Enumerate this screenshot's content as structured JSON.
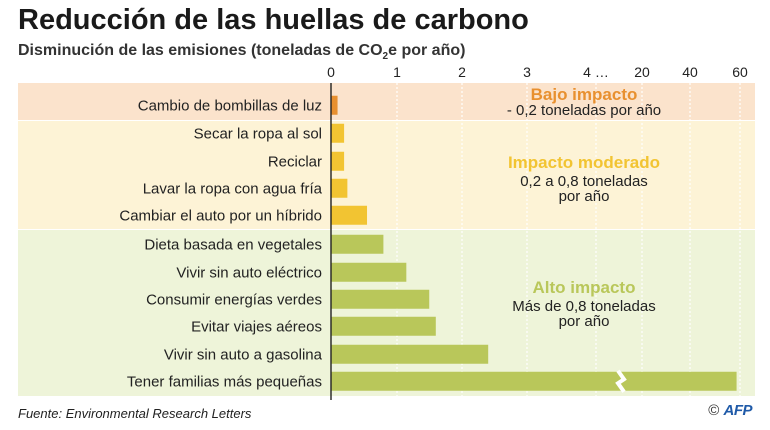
{
  "title": "Reducción de las huellas de carbono",
  "subtitle": {
    "before": "Disminución de las emisiones (toneladas de CO",
    "sub": "2",
    "after": "e por año)"
  },
  "footer": {
    "source": "Fuente: Environmental Research Letters",
    "copyright": "©",
    "logo": "AFP"
  },
  "colors": {
    "bajo_bg": "#fbe3cc",
    "bajo_bar": "#e8902f",
    "moderado_bg": "#fdf3d6",
    "moderado_bar": "#f2c432",
    "alto_bg": "#eef4d9",
    "alto_bar": "#b9c75a"
  },
  "chart_data": {
    "type": "bar",
    "orientation": "horizontal",
    "axis_note": "broken axis: 0–4 linear, then 20–60",
    "x_ticks": [
      "0",
      "1",
      "2",
      "3",
      "4 …",
      "20",
      "40",
      "60"
    ],
    "categories": [
      "Cambio de bombillas de luz",
      "Secar la ropa al sol",
      "Reciclar",
      "Lavar la ropa con agua fría",
      "Cambiar el auto por un híbrido",
      "Dieta basada en vegetales",
      "Vivir sin auto eléctrico",
      "Consumir energías verdes",
      "Evitar viajes aéreos",
      "Vivir sin auto a gasolina",
      "Tener familias más pequeñas"
    ],
    "values": [
      0.1,
      0.2,
      0.2,
      0.25,
      0.55,
      0.8,
      1.15,
      1.5,
      1.6,
      2.4,
      58.6
    ],
    "groups": [
      {
        "title": "Bajo impacto",
        "desc": [
          "- 0,2 toneladas por año"
        ],
        "color": "#e8902f",
        "count": 1
      },
      {
        "title": "Impacto moderado",
        "desc": [
          "0,2 a 0,8 toneladas",
          "por año"
        ],
        "color": "#f2c432",
        "count": 4
      },
      {
        "title": "Alto impacto",
        "desc": [
          "Más de 0,8 toneladas",
          "por año"
        ],
        "color": "#b9c75a",
        "count": 6
      }
    ]
  }
}
